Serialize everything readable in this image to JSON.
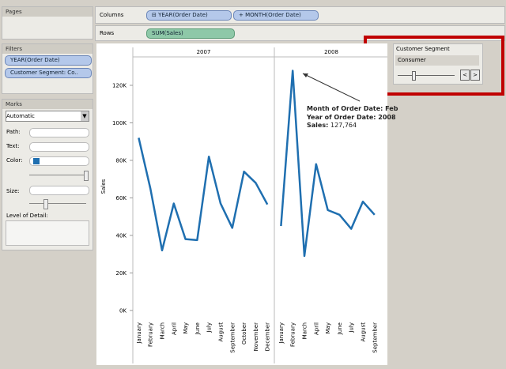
{
  "ui": {
    "pages": "Pages",
    "filters_title": "Filters",
    "filters": [
      "YEAR(Order Date)",
      "Customer Segment: Co.."
    ],
    "marks_title": "Marks",
    "mark_type": "Automatic",
    "path": "Path:",
    "text": "Text:",
    "color": "Color:",
    "size": "Size:",
    "level_of_detail": "Level of Detail:",
    "columns": "Columns",
    "rows": "Rows",
    "column_pills": [
      "YEAR(Order Date)",
      "MONTH(Order Date)"
    ],
    "row_pills": [
      "SUM(Sales)"
    ],
    "segment_title": "Customer Segment",
    "segment_value": "Consumer"
  },
  "chart_data": {
    "type": "line",
    "y_label": "Sales",
    "color": "#1f6fb0",
    "ylim": [
      -3000,
      140000
    ],
    "yticks": [
      {
        "value": 0,
        "label": "0K"
      },
      {
        "value": 20000,
        "label": "20K"
      },
      {
        "value": 40000,
        "label": "40K"
      },
      {
        "value": 60000,
        "label": "60K"
      },
      {
        "value": 80000,
        "label": "80K"
      },
      {
        "value": 100000,
        "label": "100K"
      },
      {
        "value": 120000,
        "label": "120K"
      }
    ],
    "panes": [
      {
        "title": "2007",
        "categories": [
          "January",
          "February",
          "March",
          "April",
          "May",
          "June",
          "July",
          "August",
          "September",
          "October",
          "November",
          "December"
        ],
        "values": [
          92000,
          65000,
          32000,
          57000,
          38000,
          37500,
          82000,
          57000,
          44000,
          74000,
          68000,
          56500
        ]
      },
      {
        "title": "2008",
        "categories": [
          "January",
          "February",
          "March",
          "April",
          "May",
          "June",
          "July",
          "August",
          "September"
        ],
        "values": [
          45000,
          127764,
          29000,
          78000,
          53500,
          51000,
          43500,
          58000,
          51000
        ]
      }
    ],
    "tooltip": {
      "month": "Month of Order Date: Feb",
      "year": "Year of Order Date: 2008",
      "sales_label": "Sales:",
      "sales_value": "127,764"
    }
  }
}
